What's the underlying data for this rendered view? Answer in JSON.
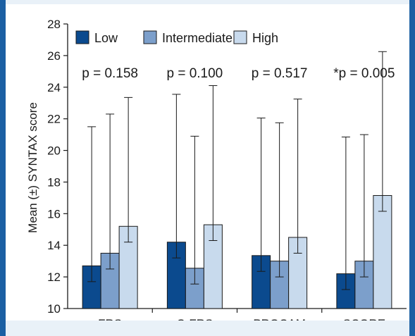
{
  "chart_data": {
    "type": "bar",
    "ylabel": "Mean (±) SYNTAX score",
    "ylim": [
      10,
      28
    ],
    "yticks": [
      10,
      12,
      14,
      16,
      18,
      20,
      22,
      24,
      26,
      28
    ],
    "categories": [
      "FRS",
      "C-FRS",
      "PROCAM",
      "SCORE"
    ],
    "annotations": [
      "p = 0.158",
      "p = 0.100",
      "p = 0.517",
      "*p = 0.005"
    ],
    "legend_position": "top-left",
    "series": [
      {
        "name": "Low",
        "color": "#0b4a8e",
        "values": [
          12.7,
          14.2,
          13.35,
          12.2
        ],
        "error_up": [
          21.5,
          23.55,
          22.05,
          20.85
        ],
        "error_down": [
          11.7,
          13.2,
          12.35,
          11.2
        ]
      },
      {
        "name": "Intermediate",
        "color": "#7c9fcb",
        "values": [
          13.5,
          12.55,
          13.0,
          13.0
        ],
        "error_up": [
          22.3,
          20.9,
          21.75,
          21.0
        ],
        "error_down": [
          12.5,
          11.55,
          12.0,
          12.0
        ]
      },
      {
        "name": "High",
        "color": "#c8daed",
        "values": [
          15.2,
          15.3,
          14.5,
          17.15
        ],
        "error_up": [
          23.35,
          24.1,
          23.25,
          26.25
        ],
        "error_down": [
          14.2,
          14.3,
          13.5,
          16.15
        ]
      }
    ]
  }
}
